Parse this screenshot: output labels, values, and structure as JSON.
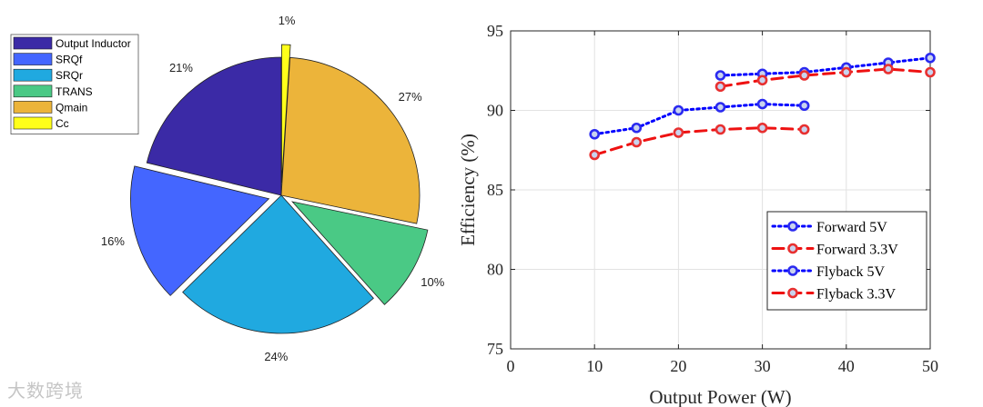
{
  "watermark": "大数跨境",
  "chart_data": [
    {
      "type": "pie",
      "slices": [
        {
          "label": "Output Inductor",
          "value": 21,
          "pct_label": "21%",
          "color": "#3b2aa6",
          "exploded": false
        },
        {
          "label": "SRQf",
          "value": 16,
          "pct_label": "16%",
          "color": "#4466ff",
          "exploded": true
        },
        {
          "label": "SRQr",
          "value": 24,
          "pct_label": "24%",
          "color": "#20a9e0",
          "exploded": false
        },
        {
          "label": "TRANS",
          "value": 10,
          "pct_label": "10%",
          "color": "#4ac985",
          "exploded": true
        },
        {
          "label": "Qmain",
          "value": 27,
          "pct_label": "27%",
          "color": "#ecb43a",
          "exploded": false
        },
        {
          "label": "Cc",
          "value": 1,
          "pct_label": "1%",
          "color": "#ffff1a",
          "exploded": true
        }
      ],
      "legend": [
        "Output Inductor",
        "SRQf",
        "SRQr",
        "TRANS",
        "Qmain",
        "Cc"
      ],
      "legend_position": "top-left"
    },
    {
      "type": "line",
      "xlabel": "Output Power (W)",
      "ylabel": "Efficiency (%)",
      "xlim": [
        0,
        50
      ],
      "ylim": [
        75,
        95
      ],
      "xticks": [
        0,
        10,
        20,
        30,
        40,
        50
      ],
      "yticks": [
        75,
        80,
        85,
        90,
        95
      ],
      "grid": true,
      "legend_position": "bottom-right",
      "series": [
        {
          "name": "Forward 5V",
          "color": "#0000ff",
          "marker_color": "#2a2af0",
          "style": "dotted",
          "x": [
            25,
            30,
            35,
            40,
            45,
            50
          ],
          "y": [
            92.2,
            92.3,
            92.4,
            92.7,
            93.0,
            93.3
          ]
        },
        {
          "name": "Forward 3.3V",
          "color": "#ee1111",
          "marker_color": "#e83030",
          "style": "dashed",
          "x": [
            25,
            30,
            35,
            40,
            45,
            50
          ],
          "y": [
            91.5,
            91.9,
            92.2,
            92.4,
            92.6,
            92.4
          ]
        },
        {
          "name": "Flyback 5V",
          "color": "#0000ff",
          "marker_color": "#2a2af0",
          "style": "dotted",
          "x": [
            10,
            15,
            20,
            25,
            30,
            35
          ],
          "y": [
            88.5,
            88.9,
            90.0,
            90.2,
            90.4,
            90.3
          ]
        },
        {
          "name": "Flyback 3.3V",
          "color": "#ee1111",
          "marker_color": "#e83030",
          "style": "dashed",
          "x": [
            10,
            15,
            20,
            25,
            30,
            35
          ],
          "y": [
            87.2,
            88.0,
            88.6,
            88.8,
            88.9,
            88.8
          ]
        }
      ]
    }
  ]
}
